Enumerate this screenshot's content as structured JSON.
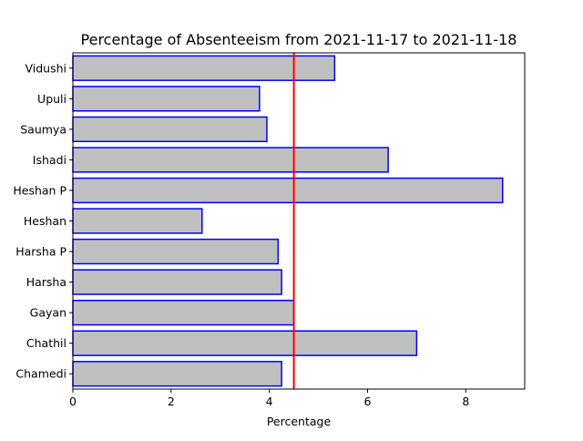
{
  "chart_data": {
    "type": "bar",
    "orientation": "horizontal",
    "title": "Percentage of Absenteeism from 2021-11-17 to 2021-11-18",
    "xlabel": "Percentage",
    "ylabel": "",
    "xlim": [
      0,
      9.2
    ],
    "x_ticks": [
      0,
      2,
      4,
      6,
      8
    ],
    "categories": [
      "Chamedi",
      "Chathil",
      "Gayan",
      "Harsha",
      "Harsha P",
      "Heshan",
      "Heshan P",
      "Ishadi",
      "Saumya",
      "Upuli",
      "Vidushi"
    ],
    "values": [
      4.25,
      7.0,
      4.5,
      4.25,
      4.18,
      2.63,
      8.75,
      6.42,
      3.95,
      3.8,
      5.33
    ],
    "reference_line": {
      "x": 4.5,
      "color": "#ff0000"
    },
    "bar_fill_color": "#bfbfbf",
    "bar_edge_color": "#0000ff",
    "grid": false,
    "legend": "none"
  }
}
